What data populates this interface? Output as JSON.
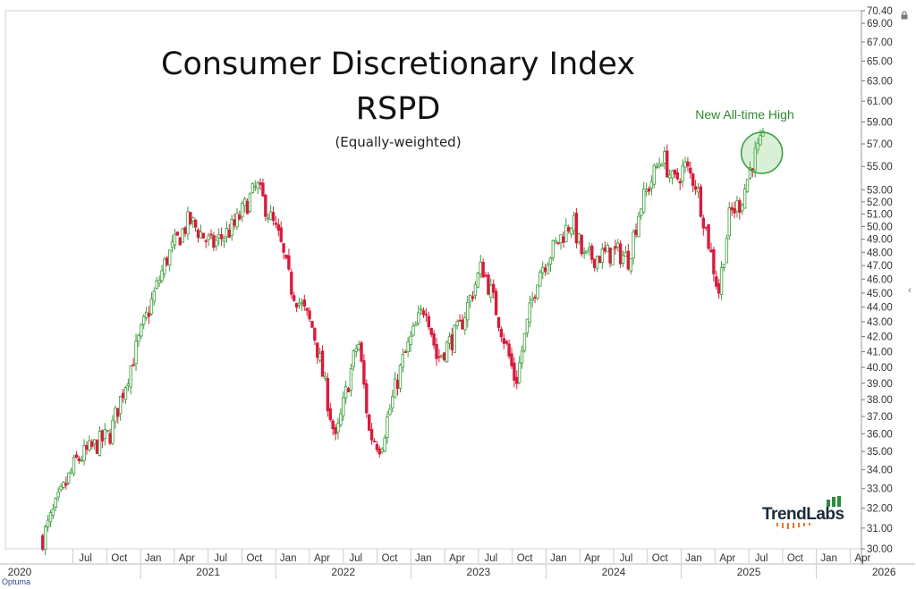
{
  "chart_data": {
    "type": "candlestick",
    "title": "Consumer Discretionary Index",
    "title_line2": "RSPD",
    "subtitle": "(Equally-weighted)",
    "annotation": "New All-time High",
    "y_axis_labels": [
      "70.40",
      "69.00",
      "67.00",
      "65.00",
      "63.00",
      "61.00",
      "59.00",
      "57.00",
      "55.00",
      "53.00",
      "52.00",
      "51.00",
      "50.00",
      "49.00",
      "48.00",
      "47.00",
      "46.00",
      "45.00",
      "44.00",
      "43.00",
      "42.00",
      "41.00",
      "40.00",
      "39.00",
      "38.00",
      "37.00",
      "36.00",
      "35.00",
      "34.00",
      "33.00",
      "32.00",
      "31.00",
      "30.00"
    ],
    "y_scale": "log",
    "ylim": [
      30.0,
      70.4
    ],
    "month_labels": [
      "Jul",
      "Oct",
      "Jan",
      "Apr",
      "Jul",
      "Oct",
      "Jan",
      "Apr",
      "Jul",
      "Oct",
      "Jan",
      "Apr",
      "Jul",
      "Oct",
      "Jan",
      "Apr",
      "Jul",
      "Oct",
      "Jan",
      "Apr",
      "Jul",
      "Oct",
      "Jan",
      "Apr"
    ],
    "year_labels": [
      "2020",
      "2021",
      "2022",
      "2023",
      "2024",
      "2025",
      "2026"
    ],
    "up_color": "#3a9a3a",
    "down_color": "#d81b3c",
    "key_points": [
      {
        "x": "2020-04",
        "y": 30.5
      },
      {
        "x": "2020-07",
        "y": 34.5
      },
      {
        "x": "2020-10",
        "y": 36.0
      },
      {
        "x": "2020-12",
        "y": 40.5
      },
      {
        "x": "2021-03",
        "y": 47.5
      },
      {
        "x": "2021-05",
        "y": 50.5
      },
      {
        "x": "2021-07",
        "y": 48.5
      },
      {
        "x": "2021-09",
        "y": 50.0
      },
      {
        "x": "2021-11",
        "y": 53.3
      },
      {
        "x": "2022-01",
        "y": 49.0
      },
      {
        "x": "2022-02",
        "y": 45.5
      },
      {
        "x": "2022-04",
        "y": 42.5
      },
      {
        "x": "2022-06",
        "y": 35.5
      },
      {
        "x": "2022-08",
        "y": 41.8
      },
      {
        "x": "2022-09",
        "y": 36.0
      },
      {
        "x": "2022-10",
        "y": 35.3
      },
      {
        "x": "2022-12",
        "y": 40.5
      },
      {
        "x": "2023-02",
        "y": 44.3
      },
      {
        "x": "2023-03",
        "y": 40.5
      },
      {
        "x": "2023-05",
        "y": 42.5
      },
      {
        "x": "2023-07",
        "y": 47.0
      },
      {
        "x": "2023-08",
        "y": 44.5
      },
      {
        "x": "2023-10",
        "y": 39.0
      },
      {
        "x": "2023-12",
        "y": 46.5
      },
      {
        "x": "2024-03",
        "y": 50.5
      },
      {
        "x": "2024-04",
        "y": 47.5
      },
      {
        "x": "2024-07",
        "y": 48.0
      },
      {
        "x": "2024-08",
        "y": 47.5
      },
      {
        "x": "2024-09",
        "y": 51.5
      },
      {
        "x": "2024-11",
        "y": 56.0
      },
      {
        "x": "2024-12",
        "y": 53.5
      },
      {
        "x": "2025-01",
        "y": 55.0
      },
      {
        "x": "2025-02",
        "y": 53.5
      },
      {
        "x": "2025-04",
        "y": 45.0
      },
      {
        "x": "2025-05",
        "y": 51.0
      },
      {
        "x": "2025-06",
        "y": 52.0
      },
      {
        "x": "2025-07",
        "y": 55.5
      },
      {
        "x": "2025-08",
        "y": 57.3
      }
    ]
  },
  "branding": {
    "logo_text": "TrendLabs",
    "provider": "Optuma",
    "logo_accent": "#2e8b3e",
    "logo_dot_color": "#e8742a"
  },
  "icons": {
    "lock": "lock-icon",
    "collapse": "chevron-left-icon"
  }
}
